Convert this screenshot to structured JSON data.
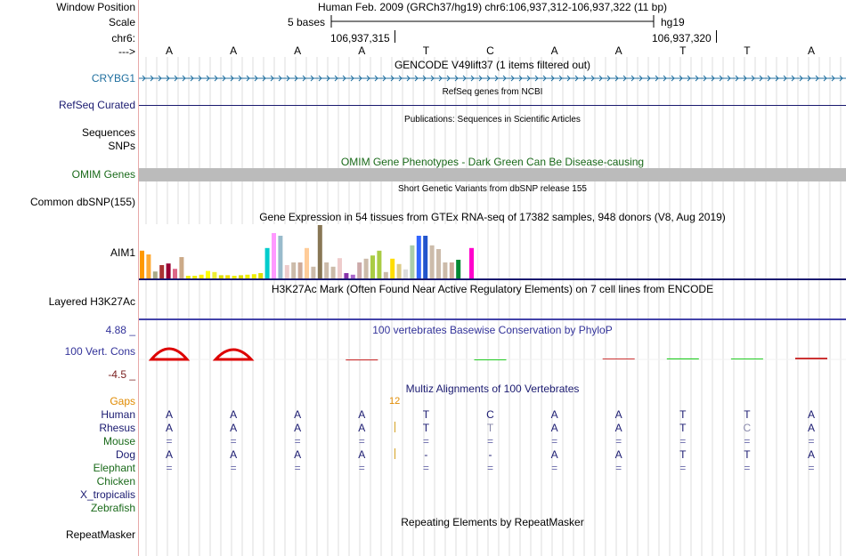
{
  "header": {
    "window_position_label": "Window Position",
    "scale_label": "Scale",
    "chrom_label": "chr6:",
    "arrow_label": "--->",
    "assembly_text": "Human Feb. 2009 (GRCh37/hg19)   chr6:106,937,312-106,937,322 (11 bp)",
    "scale_text": "5 bases",
    "scale_db": "hg19",
    "coord_1": "106,937,315",
    "coord_2": "106,937,320",
    "bases": [
      "A",
      "A",
      "A",
      "A",
      "T",
      "C",
      "A",
      "A",
      "T",
      "T",
      "A"
    ]
  },
  "tracks": {
    "gencode": {
      "title": "GENCODE V49lift37 (1 items filtered out)",
      "gene": "CRYBG1",
      "gene_color": "#1f6f9f"
    },
    "refseq": {
      "title": "RefSeq genes from NCBI",
      "label": "RefSeq Curated"
    },
    "publications": {
      "title": "Publications: Sequences in Scientific Articles",
      "label_1": "Sequences",
      "label_2": "SNPs"
    },
    "omim": {
      "title": "OMIM Gene Phenotypes - Dark Green Can Be Disease-causing",
      "label": "OMIM Genes"
    },
    "dbsnp": {
      "title": "Short Genetic Variants from dbSNP release 155",
      "label": "Common dbSNP(155)"
    },
    "gtex": {
      "title": "Gene Expression in 54 tissues from GTEx RNA-seq of 17382 samples, 948 donors (V8, Aug 2019)",
      "label": "AIM1",
      "bars": [
        {
          "v": 0.52,
          "c": "#ff9900"
        },
        {
          "v": 0.45,
          "c": "#ffaa33"
        },
        {
          "v": 0.13,
          "c": "#aaaa88"
        },
        {
          "v": 0.25,
          "c": "#aa3333"
        },
        {
          "v": 0.28,
          "c": "#990033"
        },
        {
          "v": 0.18,
          "c": "#dd6688"
        },
        {
          "v": 0.4,
          "c": "#ccaa88"
        },
        {
          "v": 0.05,
          "c": "#eeee00"
        },
        {
          "v": 0.05,
          "c": "#eeee00"
        },
        {
          "v": 0.07,
          "c": "#ffee00"
        },
        {
          "v": 0.14,
          "c": "#ffff00"
        },
        {
          "v": 0.12,
          "c": "#eeee33"
        },
        {
          "v": 0.06,
          "c": "#dddd00"
        },
        {
          "v": 0.06,
          "c": "#eedd00"
        },
        {
          "v": 0.05,
          "c": "#eeee00"
        },
        {
          "v": 0.06,
          "c": "#dddd00"
        },
        {
          "v": 0.07,
          "c": "#eeee00"
        },
        {
          "v": 0.08,
          "c": "#eeee00"
        },
        {
          "v": 0.1,
          "c": "#dddd00"
        },
        {
          "v": 0.57,
          "c": "#00cccc"
        },
        {
          "v": 0.85,
          "c": "#ff99ff"
        },
        {
          "v": 0.8,
          "c": "#99bbcc"
        },
        {
          "v": 0.25,
          "c": "#eecccc"
        },
        {
          "v": 0.3,
          "c": "#ccbbaa"
        },
        {
          "v": 0.3,
          "c": "#ccaa99"
        },
        {
          "v": 0.57,
          "c": "#ffcc99"
        },
        {
          "v": 0.22,
          "c": "#ccbbaa"
        },
        {
          "v": 1.0,
          "c": "#887755"
        },
        {
          "v": 0.3,
          "c": "#ccbbaa"
        },
        {
          "v": 0.22,
          "c": "#ccbbaa"
        },
        {
          "v": 0.38,
          "c": "#eecccc"
        },
        {
          "v": 0.1,
          "c": "#8833aa"
        },
        {
          "v": 0.07,
          "c": "#aa66cc"
        },
        {
          "v": 0.3,
          "c": "#ccaaaa"
        },
        {
          "v": 0.37,
          "c": "#ccbbaa"
        },
        {
          "v": 0.43,
          "c": "#aacc44"
        },
        {
          "v": 0.52,
          "c": "#aacc44"
        },
        {
          "v": 0.12,
          "c": "#ccbbaa"
        },
        {
          "v": 0.37,
          "c": "#ffdd00"
        },
        {
          "v": 0.27,
          "c": "#ddcc88"
        },
        {
          "v": 0.17,
          "c": "#dddddd"
        },
        {
          "v": 0.62,
          "c": "#aaccaa"
        },
        {
          "v": 0.8,
          "c": "#3366ff"
        },
        {
          "v": 0.8,
          "c": "#2255cc"
        },
        {
          "v": 0.62,
          "c": "#ccbbaa"
        },
        {
          "v": 0.55,
          "c": "#ccbbaa"
        },
        {
          "v": 0.3,
          "c": "#ccbbaa"
        },
        {
          "v": 0.3,
          "c": "#ccaa99"
        },
        {
          "v": 0.35,
          "c": "#008833"
        },
        {
          "v": 0.15,
          "c": "#ffffff"
        },
        {
          "v": 0.57,
          "c": "#ff00cc"
        }
      ]
    },
    "h3k27ac": {
      "title": "H3K27Ac Mark (Often Found Near Active Regulatory Elements) on 7 cell lines from ENCODE",
      "label": "Layered H3K27Ac"
    },
    "phylop": {
      "title": "100 vertebrates Basewise Conservation by PhyloP",
      "label": "100 Vert. Cons",
      "max": "4.88 _",
      "min": "-4.5 _",
      "scores": [
        2.4,
        2.2,
        0.0,
        -0.45,
        0.0,
        -0.25,
        0.0,
        0.1,
        0.45,
        0.2,
        0.8
      ]
    },
    "multiz": {
      "title": "Multiz Alignments of 100 Vertebrates",
      "gaps_label": "Gaps",
      "gap_count": "12",
      "species": [
        {
          "name": "Human",
          "color": "#1a1a70",
          "bases": [
            "A",
            "A",
            "A",
            "A",
            "T",
            "C",
            "A",
            "A",
            "T",
            "T",
            "A"
          ]
        },
        {
          "name": "Rhesus",
          "color": "#1a1a70",
          "bases": [
            "A",
            "A",
            "A",
            "A",
            "T",
            "T",
            "A",
            "A",
            "T",
            "C",
            "A"
          ]
        },
        {
          "name": "Mouse",
          "color": "#1a6a1a",
          "bases": [
            "=",
            "=",
            "=",
            "=",
            "=",
            "=",
            "=",
            "=",
            "=",
            "=",
            "="
          ]
        },
        {
          "name": "Dog",
          "color": "#1a1a70",
          "bases": [
            "A",
            "A",
            "A",
            "A",
            "-",
            "-",
            "A",
            "A",
            "T",
            "T",
            "A"
          ]
        },
        {
          "name": "Elephant",
          "color": "#1a6a1a",
          "bases": [
            "=",
            "=",
            "=",
            "=",
            "=",
            "=",
            "=",
            "=",
            "=",
            "=",
            "="
          ]
        },
        {
          "name": "Chicken",
          "color": "#1a6a1a",
          "bases": [
            "",
            "",
            "",
            "",
            "",
            "",
            "",
            "",
            "",
            "",
            ""
          ]
        },
        {
          "name": "X_tropicalis",
          "color": "#1a1a70",
          "bases": [
            "",
            "",
            "",
            "",
            "",
            "",
            "",
            "",
            "",
            "",
            ""
          ]
        },
        {
          "name": "Zebrafish",
          "color": "#1a6a1a",
          "bases": [
            "",
            "",
            "",
            "",
            "",
            "",
            "",
            "",
            "",
            "",
            ""
          ]
        }
      ]
    },
    "repeatmasker": {
      "title": "Repeating Elements by RepeatMasker",
      "label": "RepeatMasker"
    }
  }
}
